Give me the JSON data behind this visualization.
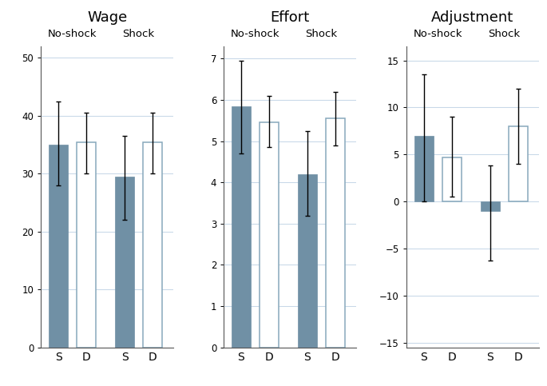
{
  "panels": [
    {
      "title": "Wage",
      "ylim": [
        0,
        52
      ],
      "yticks": [
        0,
        10,
        20,
        30,
        40,
        50
      ],
      "bars": [
        {
          "val": 35.0,
          "ci_low": 28.0,
          "ci_high": 42.5,
          "filled": true,
          "label": "S"
        },
        {
          "val": 35.5,
          "ci_low": 30.0,
          "ci_high": 40.5,
          "filled": false,
          "label": "D"
        },
        {
          "val": 29.5,
          "ci_low": 22.0,
          "ci_high": 36.5,
          "filled": true,
          "label": "S"
        },
        {
          "val": 35.5,
          "ci_low": 30.0,
          "ci_high": 40.5,
          "filled": false,
          "label": "D"
        }
      ]
    },
    {
      "title": "Effort",
      "ylim": [
        0,
        7.3
      ],
      "yticks": [
        0,
        1,
        2,
        3,
        4,
        5,
        6,
        7
      ],
      "bars": [
        {
          "val": 5.85,
          "ci_low": 4.7,
          "ci_high": 6.95,
          "filled": true,
          "label": "S"
        },
        {
          "val": 5.45,
          "ci_low": 4.85,
          "ci_high": 6.1,
          "filled": false,
          "label": "D"
        },
        {
          "val": 4.2,
          "ci_low": 3.2,
          "ci_high": 5.25,
          "filled": true,
          "label": "S"
        },
        {
          "val": 5.55,
          "ci_low": 4.9,
          "ci_high": 6.2,
          "filled": false,
          "label": "D"
        }
      ]
    },
    {
      "title": "Adjustment",
      "ylim": [
        -15.5,
        16.5
      ],
      "yticks": [
        -15,
        -10,
        -5,
        0,
        5,
        10,
        15
      ],
      "bars": [
        {
          "val": 7.0,
          "ci_low": 0.0,
          "ci_high": 13.5,
          "filled": true,
          "label": "S"
        },
        {
          "val": 4.7,
          "ci_low": 0.5,
          "ci_high": 9.0,
          "filled": false,
          "label": "D"
        },
        {
          "val": -1.0,
          "ci_low": -6.3,
          "ci_high": 3.8,
          "filled": true,
          "label": "S"
        },
        {
          "val": 8.0,
          "ci_low": 4.0,
          "ci_high": 12.0,
          "filled": false,
          "label": "D"
        }
      ]
    }
  ],
  "filled_color": "#7090a5",
  "outline_edgecolor": "#88a8bc",
  "bar_width": 0.55,
  "positions": [
    0.5,
    1.3,
    2.4,
    3.2
  ],
  "noshock_x": 0.9,
  "shock_x": 2.8,
  "group_separator_x": 1.85,
  "xlim": [
    0.0,
    3.8
  ],
  "title_fontsize": 13,
  "sublabel_fontsize": 9.5,
  "tick_fontsize": 8.5,
  "xtick_fontsize": 10,
  "capsize": 2.5
}
